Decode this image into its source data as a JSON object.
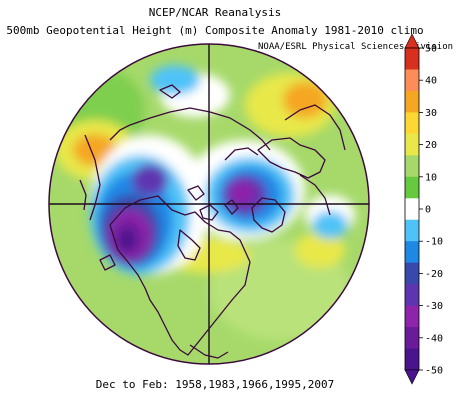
{
  "header": {
    "title_line1": "NCEP/NCAR Reanalysis",
    "title_line2": "500mb Geopotential Height (m) Composite Anomaly 1981-2010 climo",
    "credit": "NOAA/ESRL Physical Sciences Division"
  },
  "footer": {
    "caption": "Dec to Feb: 1958,1983,1966,1995,2007"
  },
  "colorbar": {
    "labels": [
      "50",
      "40",
      "30",
      "20",
      "10",
      "0",
      "-10",
      "-20",
      "-30",
      "-40",
      "-50"
    ],
    "colors": [
      "#d7301f",
      "#fc8d59",
      "#f5a623",
      "#fdd835",
      "#e8e84a",
      "#a6d96a",
      "#66c940",
      "#ffffff",
      "#4fc3f7",
      "#1e88e5",
      "#3949ab",
      "#5e35b1",
      "#8e24aa",
      "#6a1b9a",
      "#4a148c"
    ]
  },
  "map": {
    "projection": "north-polar-stereographic",
    "colors": {
      "background": "#a6d96a",
      "coast": "#3b0a3b",
      "grid": "#1a0a1a"
    }
  }
}
